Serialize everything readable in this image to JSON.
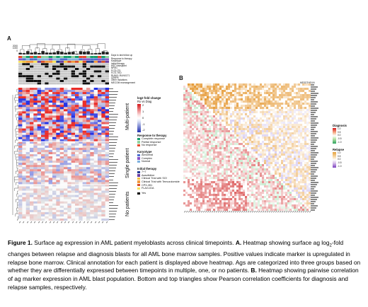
{
  "panel_a_label": "A",
  "panel_b_label": "B",
  "annotation_rows": [
    "Days to last follow up",
    "Response to therapy",
    "Karyotype",
    "Initial therapy",
    "HSC transplant",
    "NPM1",
    "FLT3-ITD",
    "FLT3-TKD",
    "RUNX1-RUNX1T1",
    "CEBPA",
    "Other mutations",
    "MECOM rearrangement"
  ],
  "follow_up_scale": [
    "2000",
    "1000",
    "0"
  ],
  "fc_legend": {
    "title": "log2 fold change",
    "subtitle": "Rx vs Diag",
    "ticks": [
      "2",
      "1",
      "0",
      "-1",
      "-2"
    ]
  },
  "response_legend": {
    "title": "Response to therapy",
    "items": [
      {
        "label": "Complete response",
        "color": "#1a9e6c"
      },
      {
        "label": "Partial response",
        "color": "#8fd4a0"
      },
      {
        "label": "No response",
        "color": "#e64a2e"
      }
    ]
  },
  "karyotype_legend": {
    "title": "Karyotype",
    "items": [
      {
        "label": "Abnormal",
        "color": "#4b6fd1"
      },
      {
        "label": "Complex",
        "color": "#8a56c9"
      },
      {
        "label": "Normal",
        "color": "#7fb2e0"
      }
    ]
  },
  "therapy_legend": {
    "title": "Initial therapy",
    "items": [
      {
        "label": "7+7",
        "color": "#1f3a93"
      },
      {
        "label": "Azacitidine",
        "color": "#6e3fa3"
      },
      {
        "label": "Clinical Trial with SG!",
        "color": "#f3c03d"
      },
      {
        "label": "Clinical Trial with Temozolomide",
        "color": "#f39a3d"
      },
      {
        "label": "CPX-351",
        "color": "#d94f2b"
      },
      {
        "label": "FLAG-IDA",
        "color": "#f7e25c"
      }
    ]
  },
  "yes_legend": {
    "label": "Yes",
    "color": "#000000"
  },
  "group_labels": [
    "Multi-patient",
    "Single patient",
    "No patients"
  ],
  "b_top_label": "MESOTHELIN",
  "diagnosis_legend": {
    "title": "Diagnosis",
    "ticks": [
      "1.0",
      "0.5",
      "0.0",
      "-0.5",
      "-1.0"
    ]
  },
  "relapse_legend": {
    "title": "Relapse",
    "ticks": [
      "1.0",
      "0.5",
      "0.0",
      "-0.5",
      "-1.0"
    ]
  },
  "caption": {
    "fig": "Figure 1.",
    "t1": " Surface ag expression in AML patient myeloblasts across clinical timepoints. ",
    "a": "A.",
    "t2": " Heatmap showing surface ag log",
    "sub": "2",
    "t3": "-fold changes between relapse and diagnosis blasts for all AML bone marrow samples. Positive values indicate marker is upregulated in relapse bone marrow. Clinical annotation for each patient is displayed above heatmap. Ags are categorized into three groups based on whether they are differentially expressed between timepoints in multiple, one, or no patients. ",
    "b": "B.",
    "t4": " Heatmap showing pairwise correlation of ag marker expression in AML blast population. Bottom and top triangles show Pearson correlation coefficients for diagnosis and relapse samples, respectively."
  }
}
